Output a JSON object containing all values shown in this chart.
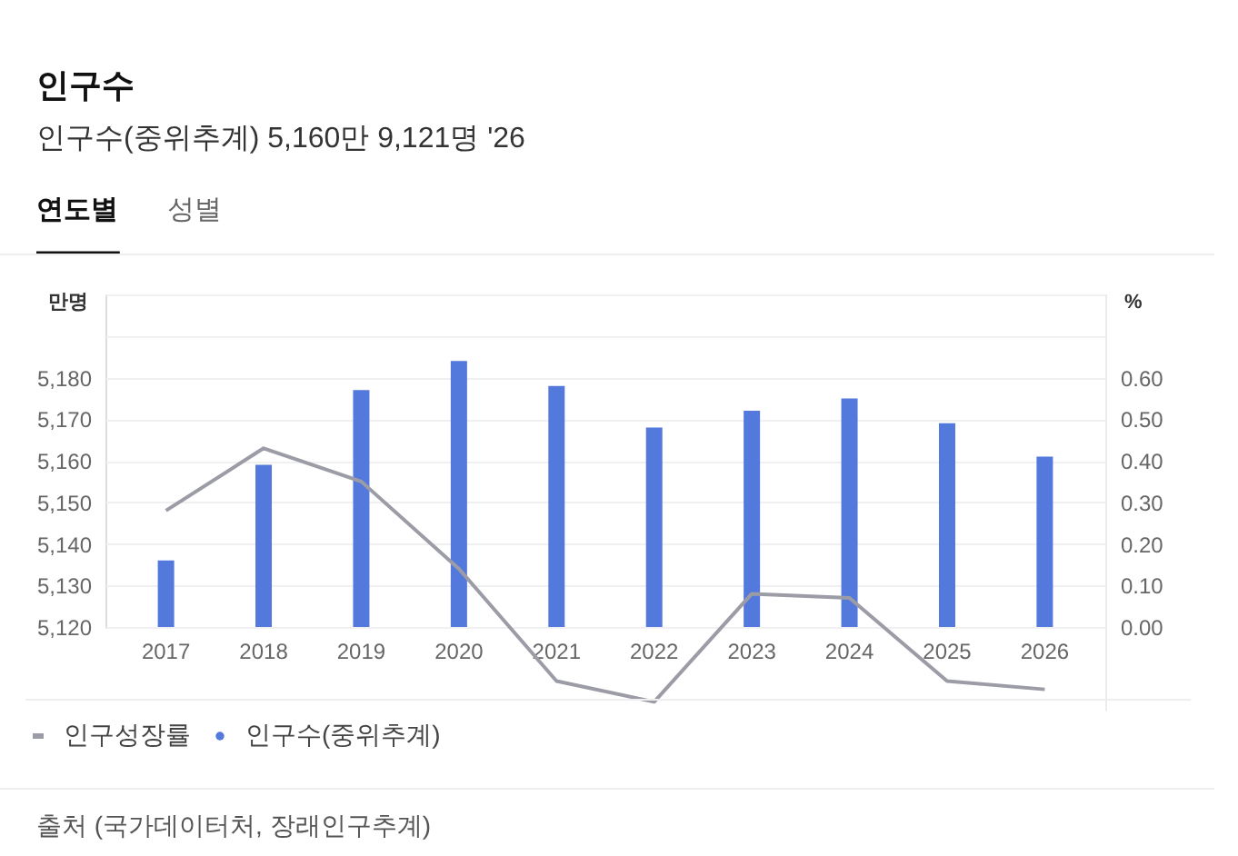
{
  "chart_data": {
    "type": "bar",
    "title": "인구수",
    "subtitle": "인구수(중위추계) 5,160만 9,121명 '26",
    "ylabel": "만명",
    "y2label": "%",
    "annotations": [
      "연도별",
      "성별",
      "출처 (국가데이터처, 장래인구추계)"
    ],
    "categories": [
      "2017",
      "2018",
      "2019",
      "2020",
      "2021",
      "2022",
      "2023",
      "2024",
      "2025",
      "2026"
    ],
    "series": [
      {
        "name": "인구성장률",
        "type": "line",
        "axis": "y2",
        "color": "#9b9ca5",
        "values": [
          0.28,
          0.43,
          0.35,
          0.14,
          -0.13,
          -0.18,
          0.08,
          0.07,
          -0.13,
          -0.15
        ]
      },
      {
        "name": "인구수(중위추계)",
        "color": "#5479dc",
        "values": [
          5136,
          5159,
          5177,
          5184,
          5178,
          5168,
          5172,
          5175,
          5169,
          5161
        ]
      }
    ],
    "ylim": [
      5120,
      5200
    ],
    "yticks": [
      {
        "value": 5120,
        "label": "5,120"
      },
      {
        "value": 5130,
        "label": "5,130"
      },
      {
        "value": 5140,
        "label": "5,140"
      },
      {
        "value": 5150,
        "label": "5,150"
      },
      {
        "value": 5160,
        "label": "5,160"
      },
      {
        "value": 5170,
        "label": "5,170"
      },
      {
        "value": 5180,
        "label": "5,180"
      },
      {
        "value": 5190,
        "label": null
      },
      {
        "value": 5200,
        "label": null
      }
    ],
    "y2lim": [
      -0.2,
      0.8
    ],
    "y2ticks": [
      {
        "value": 0,
        "label": "0.00"
      },
      {
        "value": 0.1,
        "label": "0.10"
      },
      {
        "value": 0.2,
        "label": "0.20"
      },
      {
        "value": 0.3,
        "label": "0.30"
      },
      {
        "value": 0.4,
        "label": "0.40"
      },
      {
        "value": 0.5,
        "label": "0.50"
      },
      {
        "value": 0.6,
        "label": "0.60"
      },
      {
        "value": 0.7,
        "label": null
      },
      {
        "value": 0.8,
        "label": null
      }
    ],
    "grid": "y",
    "legend": "bottom"
  }
}
